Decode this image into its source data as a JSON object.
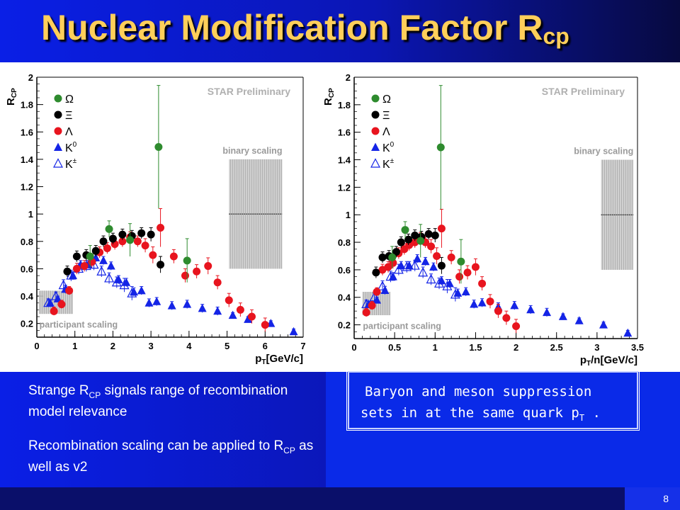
{
  "slide": {
    "title": "Nuclear Modification Factor R",
    "title_sub": "cp",
    "page_number": "8",
    "notes": [
      {
        "pre": "Strange R",
        "sub": "CP",
        "post": " signals range of recombination model relevance"
      },
      {
        "pre": "Recombination scaling can be applied to R",
        "sub": "CP",
        "post": " as well as v2"
      }
    ],
    "summary_line1": "Baryon and meson suppression",
    "summary_line2_pre": "sets in at the same quark p",
    "summary_line2_sub": "T",
    "summary_line2_post": " ."
  },
  "colors": {
    "title": "#ffcf5a",
    "omega": "#2e8b2e",
    "xi": "#000000",
    "lambda": "#e8141e",
    "k0": "#1424e6",
    "kpm": "#1424e6"
  },
  "chart_data": [
    {
      "type": "scatter",
      "title": "",
      "annotation": "STAR Preliminary",
      "xlabel_main": "p",
      "xlabel_sub": "T",
      "xlabel_rest": "[GeV/c]",
      "ylabel_main": "R",
      "ylabel_sub": "CP",
      "xlim": [
        0,
        7
      ],
      "ylim": [
        0.1,
        2
      ],
      "xticks": [
        0,
        1,
        2,
        3,
        4,
        5,
        6,
        7
      ],
      "yticks": [
        0.2,
        0.4,
        0.6,
        0.8,
        1,
        1.2,
        1.4,
        1.6,
        1.8,
        2
      ],
      "bands": [
        {
          "label": "binary scaling",
          "x": [
            5.05,
            6.45
          ],
          "y": [
            0.6,
            1.4
          ],
          "center": 1.0
        },
        {
          "label": "participant scaling",
          "x": [
            0.05,
            0.95
          ],
          "y": [
            0.27,
            0.44
          ]
        }
      ],
      "legend": [
        {
          "symbol": "circle",
          "color": "omega",
          "label": "Ω"
        },
        {
          "symbol": "circle",
          "color": "xi",
          "label": "Ξ"
        },
        {
          "symbol": "circle",
          "color": "lambda",
          "label": "Λ"
        },
        {
          "symbol": "triangle",
          "color": "k0",
          "label": "K",
          "sup": "0"
        },
        {
          "symbol": "open-triangle",
          "color": "kpm",
          "label": "K",
          "sup": "±"
        }
      ],
      "series": [
        {
          "name": "Ω",
          "marker": "circle",
          "color": "omega",
          "x": [
            1.4,
            1.9,
            2.45,
            3.2,
            3.95
          ],
          "y": [
            0.69,
            0.89,
            0.81,
            1.49,
            0.66
          ],
          "err": [
            0.08,
            0.06,
            0.12,
            0.45,
            0.16
          ]
        },
        {
          "name": "Ξ",
          "marker": "circle",
          "color": "xi",
          "x": [
            0.8,
            1.05,
            1.3,
            1.55,
            1.75,
            2.0,
            2.25,
            2.5,
            2.75,
            3.0,
            3.25
          ],
          "y": [
            0.58,
            0.69,
            0.7,
            0.73,
            0.8,
            0.82,
            0.85,
            0.84,
            0.86,
            0.85,
            0.63
          ],
          "err": [
            0.04,
            0.04,
            0.04,
            0.04,
            0.04,
            0.04,
            0.04,
            0.04,
            0.04,
            0.05,
            0.06
          ]
        },
        {
          "name": "Λ",
          "marker": "circle",
          "color": "lambda",
          "x": [
            0.45,
            0.65,
            0.85,
            1.05,
            1.25,
            1.45,
            1.65,
            1.85,
            2.05,
            2.25,
            2.45,
            2.65,
            2.85,
            3.05,
            3.25,
            3.6,
            3.9,
            4.2,
            4.5,
            4.75,
            5.05,
            5.35,
            5.65,
            6.0
          ],
          "y": [
            0.29,
            0.34,
            0.44,
            0.6,
            0.62,
            0.65,
            0.72,
            0.75,
            0.78,
            0.8,
            0.83,
            0.8,
            0.77,
            0.7,
            0.9,
            0.69,
            0.55,
            0.58,
            0.62,
            0.5,
            0.37,
            0.3,
            0.25,
            0.19
          ],
          "err": [
            0.03,
            0.03,
            0.03,
            0.04,
            0.04,
            0.04,
            0.04,
            0.04,
            0.04,
            0.04,
            0.04,
            0.04,
            0.05,
            0.06,
            0.14,
            0.05,
            0.05,
            0.05,
            0.06,
            0.05,
            0.05,
            0.05,
            0.05,
            0.05
          ]
        },
        {
          "name": "K0",
          "marker": "triangle",
          "color": "k0",
          "x": [
            0.35,
            0.55,
            0.75,
            0.95,
            1.15,
            1.35,
            1.55,
            1.75,
            1.95,
            2.15,
            2.35,
            2.55,
            2.75,
            2.95,
            3.15,
            3.55,
            3.95,
            4.35,
            4.75,
            5.15,
            5.55,
            6.15,
            6.75
          ],
          "y": [
            0.35,
            0.38,
            0.45,
            0.55,
            0.63,
            0.63,
            0.68,
            0.66,
            0.62,
            0.52,
            0.5,
            0.43,
            0.44,
            0.35,
            0.36,
            0.33,
            0.34,
            0.31,
            0.29,
            0.26,
            0.23,
            0.2,
            0.14
          ],
          "err": [
            0.02,
            0.02,
            0.03,
            0.03,
            0.03,
            0.03,
            0.03,
            0.03,
            0.03,
            0.03,
            0.03,
            0.03,
            0.03,
            0.03,
            0.03,
            0.03,
            0.03,
            0.03,
            0.03,
            0.02,
            0.02,
            0.02,
            0.02
          ]
        },
        {
          "name": "K±",
          "marker": "open-triangle",
          "color": "kpm",
          "x": [
            0.3,
            0.5,
            0.7,
            0.9,
            1.1,
            1.3,
            1.5,
            1.7,
            1.9,
            2.1,
            2.3,
            2.5
          ],
          "y": [
            0.35,
            0.4,
            0.48,
            0.55,
            0.6,
            0.62,
            0.63,
            0.58,
            0.53,
            0.5,
            0.48,
            0.42
          ],
          "err": [
            0.03,
            0.03,
            0.04,
            0.04,
            0.04,
            0.04,
            0.04,
            0.04,
            0.04,
            0.04,
            0.05,
            0.05
          ]
        }
      ]
    },
    {
      "type": "scatter",
      "title": "",
      "annotation": "STAR Preliminary",
      "xlabel_main": "p",
      "xlabel_sub": "T",
      "xlabel_rest": "/n[GeV/c]",
      "ylabel_main": "R",
      "ylabel_sub": "CP",
      "xlim": [
        0,
        3.5
      ],
      "ylim": [
        0.1,
        2
      ],
      "xticks": [
        0,
        0.5,
        1,
        1.5,
        2,
        2.5,
        3,
        3.5
      ],
      "yticks": [
        0.2,
        0.4,
        0.6,
        0.8,
        1,
        1.2,
        1.4,
        1.6,
        1.8,
        2
      ],
      "bands": [
        {
          "label": "binary scaling",
          "x": [
            3.05,
            3.45
          ],
          "y": [
            0.6,
            1.4
          ],
          "center": 1.0
        },
        {
          "label": "participant scaling",
          "x": [
            0.1,
            0.45
          ],
          "y": [
            0.27,
            0.44
          ]
        }
      ],
      "legend": [
        {
          "symbol": "circle",
          "color": "omega",
          "label": "Ω"
        },
        {
          "symbol": "circle",
          "color": "xi",
          "label": "Ξ"
        },
        {
          "symbol": "circle",
          "color": "lambda",
          "label": "Λ"
        },
        {
          "symbol": "triangle",
          "color": "k0",
          "label": "K",
          "sup": "0"
        },
        {
          "symbol": "open-triangle",
          "color": "kpm",
          "label": "K",
          "sup": "±"
        }
      ],
      "series": [
        {
          "name": "Ω",
          "marker": "circle",
          "color": "omega",
          "x": [
            0.47,
            0.63,
            0.82,
            1.07,
            1.32
          ],
          "y": [
            0.69,
            0.89,
            0.81,
            1.49,
            0.66
          ],
          "err": [
            0.08,
            0.06,
            0.12,
            0.45,
            0.16
          ]
        },
        {
          "name": "Ξ",
          "marker": "circle",
          "color": "xi",
          "x": [
            0.27,
            0.35,
            0.43,
            0.52,
            0.58,
            0.67,
            0.75,
            0.83,
            0.92,
            1.0,
            1.08
          ],
          "y": [
            0.58,
            0.69,
            0.7,
            0.73,
            0.8,
            0.82,
            0.85,
            0.84,
            0.86,
            0.85,
            0.63
          ],
          "err": [
            0.04,
            0.04,
            0.04,
            0.04,
            0.04,
            0.04,
            0.04,
            0.04,
            0.04,
            0.05,
            0.06
          ]
        },
        {
          "name": "Λ",
          "marker": "circle",
          "color": "lambda",
          "x": [
            0.15,
            0.22,
            0.28,
            0.35,
            0.42,
            0.48,
            0.55,
            0.62,
            0.68,
            0.75,
            0.82,
            0.88,
            0.95,
            1.02,
            1.08,
            1.2,
            1.3,
            1.4,
            1.5,
            1.58,
            1.68,
            1.78,
            1.88,
            2.0
          ],
          "y": [
            0.29,
            0.34,
            0.44,
            0.6,
            0.62,
            0.65,
            0.72,
            0.75,
            0.78,
            0.8,
            0.83,
            0.8,
            0.77,
            0.7,
            0.9,
            0.69,
            0.55,
            0.58,
            0.62,
            0.5,
            0.37,
            0.3,
            0.25,
            0.19
          ],
          "err": [
            0.03,
            0.03,
            0.03,
            0.04,
            0.04,
            0.04,
            0.04,
            0.04,
            0.04,
            0.04,
            0.04,
            0.04,
            0.05,
            0.06,
            0.14,
            0.05,
            0.05,
            0.05,
            0.06,
            0.05,
            0.05,
            0.05,
            0.05,
            0.05
          ]
        },
        {
          "name": "K0",
          "marker": "triangle",
          "color": "k0",
          "x": [
            0.18,
            0.28,
            0.38,
            0.48,
            0.58,
            0.68,
            0.78,
            0.88,
            0.98,
            1.08,
            1.18,
            1.28,
            1.38,
            1.48,
            1.58,
            1.78,
            1.98,
            2.18,
            2.38,
            2.58,
            2.78,
            3.08,
            3.38
          ],
          "y": [
            0.35,
            0.38,
            0.45,
            0.55,
            0.63,
            0.63,
            0.68,
            0.66,
            0.62,
            0.52,
            0.5,
            0.43,
            0.44,
            0.35,
            0.36,
            0.33,
            0.34,
            0.31,
            0.29,
            0.26,
            0.23,
            0.2,
            0.14
          ],
          "err": [
            0.02,
            0.02,
            0.03,
            0.03,
            0.03,
            0.03,
            0.03,
            0.03,
            0.03,
            0.03,
            0.03,
            0.03,
            0.03,
            0.03,
            0.03,
            0.03,
            0.03,
            0.03,
            0.03,
            0.02,
            0.02,
            0.02,
            0.02
          ]
        },
        {
          "name": "K±",
          "marker": "open-triangle",
          "color": "kpm",
          "x": [
            0.15,
            0.25,
            0.35,
            0.45,
            0.55,
            0.65,
            0.75,
            0.85,
            0.95,
            1.05,
            1.15,
            1.25
          ],
          "y": [
            0.35,
            0.4,
            0.48,
            0.55,
            0.6,
            0.62,
            0.63,
            0.58,
            0.53,
            0.5,
            0.48,
            0.42
          ],
          "err": [
            0.03,
            0.03,
            0.04,
            0.04,
            0.04,
            0.04,
            0.04,
            0.04,
            0.04,
            0.04,
            0.05,
            0.05
          ]
        }
      ]
    }
  ]
}
